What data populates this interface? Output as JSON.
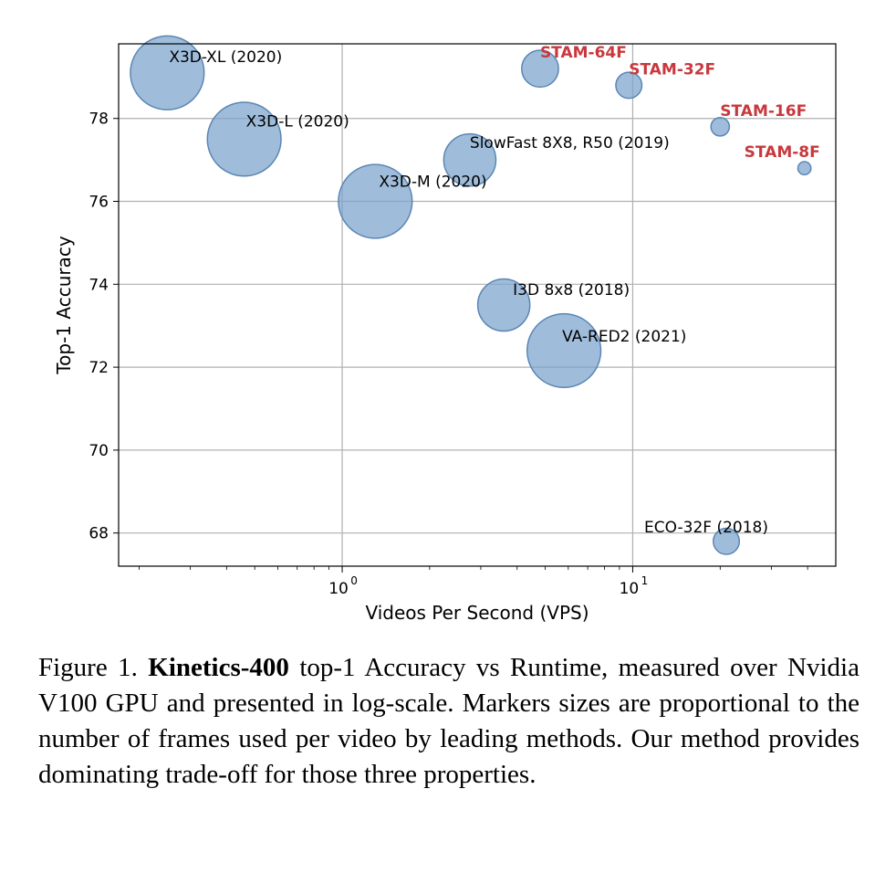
{
  "chart_data": {
    "type": "scatter",
    "title": "",
    "xlabel": "Videos Per Second (VPS)",
    "ylabel": "Top-1 Accuracy",
    "xscale": "log",
    "xlim": [
      0.17,
      50
    ],
    "ylim": [
      67.2,
      79.8
    ],
    "xticks": [
      1,
      10
    ],
    "xtick_labels": [
      {
        "base": "10",
        "exp": "0"
      },
      {
        "base": "10",
        "exp": "1"
      }
    ],
    "yticks": [
      68,
      70,
      72,
      74,
      76,
      78
    ],
    "grid": true,
    "marker_color": "#7aa3cc",
    "highlight_color": "#c8383e",
    "size_encoding": "frames per video",
    "points": [
      {
        "label": "X3D-XL (2020)",
        "x": 0.25,
        "y": 79.1,
        "frames": 16,
        "highlight": false
      },
      {
        "label": "X3D-L (2020)",
        "x": 0.46,
        "y": 77.5,
        "frames": 16,
        "highlight": false
      },
      {
        "label": "X3D-M (2020)",
        "x": 1.3,
        "y": 76.0,
        "frames": 16,
        "highlight": false
      },
      {
        "label": "SlowFast 8X8, R50 (2019)",
        "x": 2.75,
        "y": 77.0,
        "frames": 8,
        "highlight": false
      },
      {
        "label": "I3D 8x8 (2018)",
        "x": 3.6,
        "y": 73.5,
        "frames": 8,
        "highlight": false
      },
      {
        "label": "VA-RED2 (2021)",
        "x": 5.8,
        "y": 72.4,
        "frames": 16,
        "highlight": false
      },
      {
        "label": "ECO-32F (2018)",
        "x": 21,
        "y": 67.8,
        "frames": 2,
        "highlight": false
      },
      {
        "label": "STAM-64F",
        "x": 4.8,
        "y": 79.2,
        "frames": 4,
        "highlight": true
      },
      {
        "label": "STAM-32F",
        "x": 9.7,
        "y": 78.8,
        "frames": 2,
        "highlight": true
      },
      {
        "label": "STAM-16F",
        "x": 20,
        "y": 77.8,
        "frames": 1,
        "highlight": true
      },
      {
        "label": "STAM-8F",
        "x": 39,
        "y": 76.8,
        "frames": 0.5,
        "highlight": true
      }
    ]
  },
  "caption": {
    "prefix": "Figure 1. ",
    "bold": "Kinetics-400",
    "text": " top-1 Accuracy vs Runtime, measured over Nvidia V100 GPU and presented in log-scale. Markers sizes are proportional to the number of frames used per video by leading methods. Our method provides dominating trade-off for those three properties."
  }
}
